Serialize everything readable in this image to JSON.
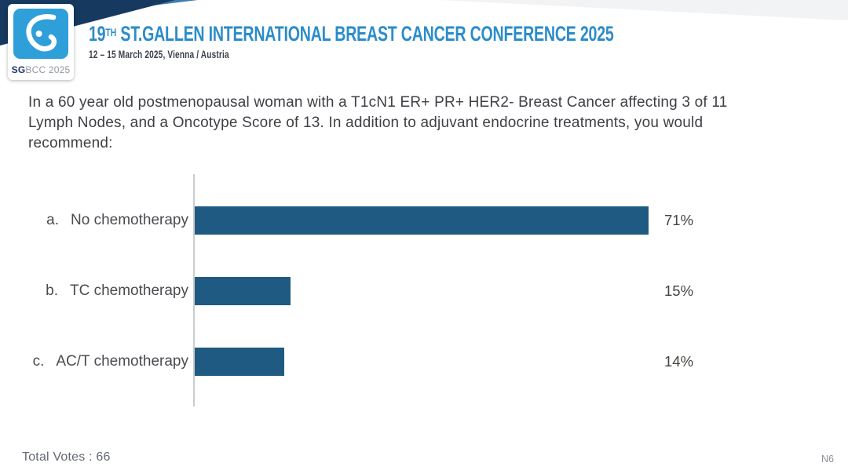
{
  "header": {
    "logo": {
      "glyph": "sgbcc-breast-glyph",
      "text_bold": "SG",
      "text_rest": "BCC 2025"
    },
    "title_num": "19",
    "title_sup": "TH",
    "title_rest": " ST.GALLEN INTERNATIONAL BREAST CANCER CONFERENCE 2025",
    "subtitle": "12 – 15 March 2025, Vienna / Austria"
  },
  "question": {
    "lines": [
      "In a 60 year old postmenopausal woman with a T1cN1 ER+ PR+ HER2- Breast Cancer affecting 3 of 11",
      "Lymph Nodes, and a Oncotype Score of 13. In addition to adjuvant endocrine treatments, you would",
      "recommend:"
    ]
  },
  "chart_data": {
    "type": "bar",
    "orientation": "horizontal",
    "title": "",
    "xlabel": "",
    "ylabel": "",
    "xlim": [
      0,
      100
    ],
    "grid": false,
    "legend": "none",
    "option_letters": [
      "a.",
      "b.",
      "c."
    ],
    "categories": [
      "No chemotherapy",
      "TC chemotherapy",
      "AC/T chemotherapy"
    ],
    "values": [
      71,
      15,
      14
    ],
    "value_labels": [
      "71%",
      "15%",
      "14%"
    ],
    "bar_color": "#1e5a81",
    "axis_color": "#c9cbce"
  },
  "footer": {
    "total_votes": "Total Votes : 66",
    "slide_code": "N6"
  },
  "colors": {
    "banner_navy": "#16395f",
    "banner_blue": "#3e7cb1",
    "title_blue": "#2b8cca",
    "logo_blue": "#2f9fd9",
    "text_dark": "#3e4045"
  }
}
